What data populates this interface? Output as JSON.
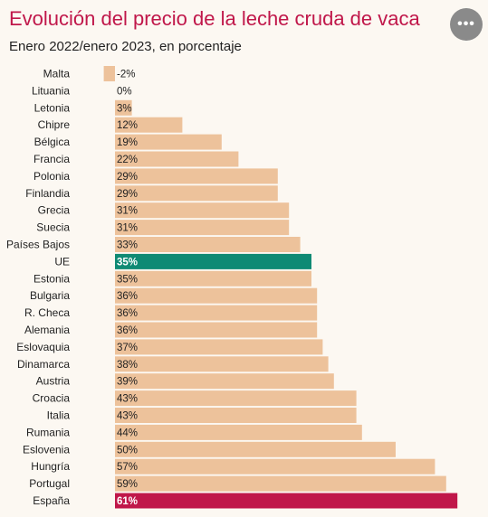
{
  "header": {
    "title": "Evolución del precio de la leche cruda de vaca",
    "subtitle": "Enero 2022/enero 2023, en porcentaje",
    "more_label": "•••"
  },
  "colors": {
    "default_bar": "#edc29b",
    "eu_bar": "#0f8a74",
    "spain_bar": "#c0174a",
    "title": "#c0174a",
    "background": "#fcf8f2"
  },
  "chart_data": {
    "type": "bar",
    "orientation": "horizontal",
    "title": "Evolución del precio de la leche cruda de vaca",
    "subtitle": "Enero 2022/enero 2023, en porcentaje",
    "xlabel": "",
    "ylabel": "",
    "xlim": [
      -2,
      61
    ],
    "grid": false,
    "legend": "none",
    "categories": [
      "Malta",
      "Lituania",
      "Letonia",
      "Chipre",
      "Bélgica",
      "Francia",
      "Polonia",
      "Finlandia",
      "Grecia",
      "Suecia",
      "Países Bajos",
      "UE",
      "Estonia",
      "Bulgaria",
      "R. Checa",
      "Alemania",
      "Eslovaquia",
      "Dinamarca",
      "Austria",
      "Croacia",
      "Italia",
      "Rumania",
      "Eslovenia",
      "Hungría",
      "Portugal",
      "España"
    ],
    "values": [
      -2,
      0,
      3,
      12,
      19,
      22,
      29,
      29,
      31,
      31,
      33,
      35,
      35,
      36,
      36,
      36,
      37,
      38,
      39,
      43,
      43,
      44,
      50,
      57,
      59,
      61
    ],
    "value_labels": [
      "-2%",
      "0%",
      "3%",
      "12%",
      "19%",
      "22%",
      "29%",
      "29%",
      "31%",
      "31%",
      "33%",
      "35%",
      "35%",
      "36%",
      "36%",
      "36%",
      "37%",
      "38%",
      "39%",
      "43%",
      "43%",
      "44%",
      "50%",
      "57%",
      "59%",
      "61%"
    ],
    "highlights": {
      "UE": "eu_bar",
      "España": "spain_bar"
    }
  }
}
